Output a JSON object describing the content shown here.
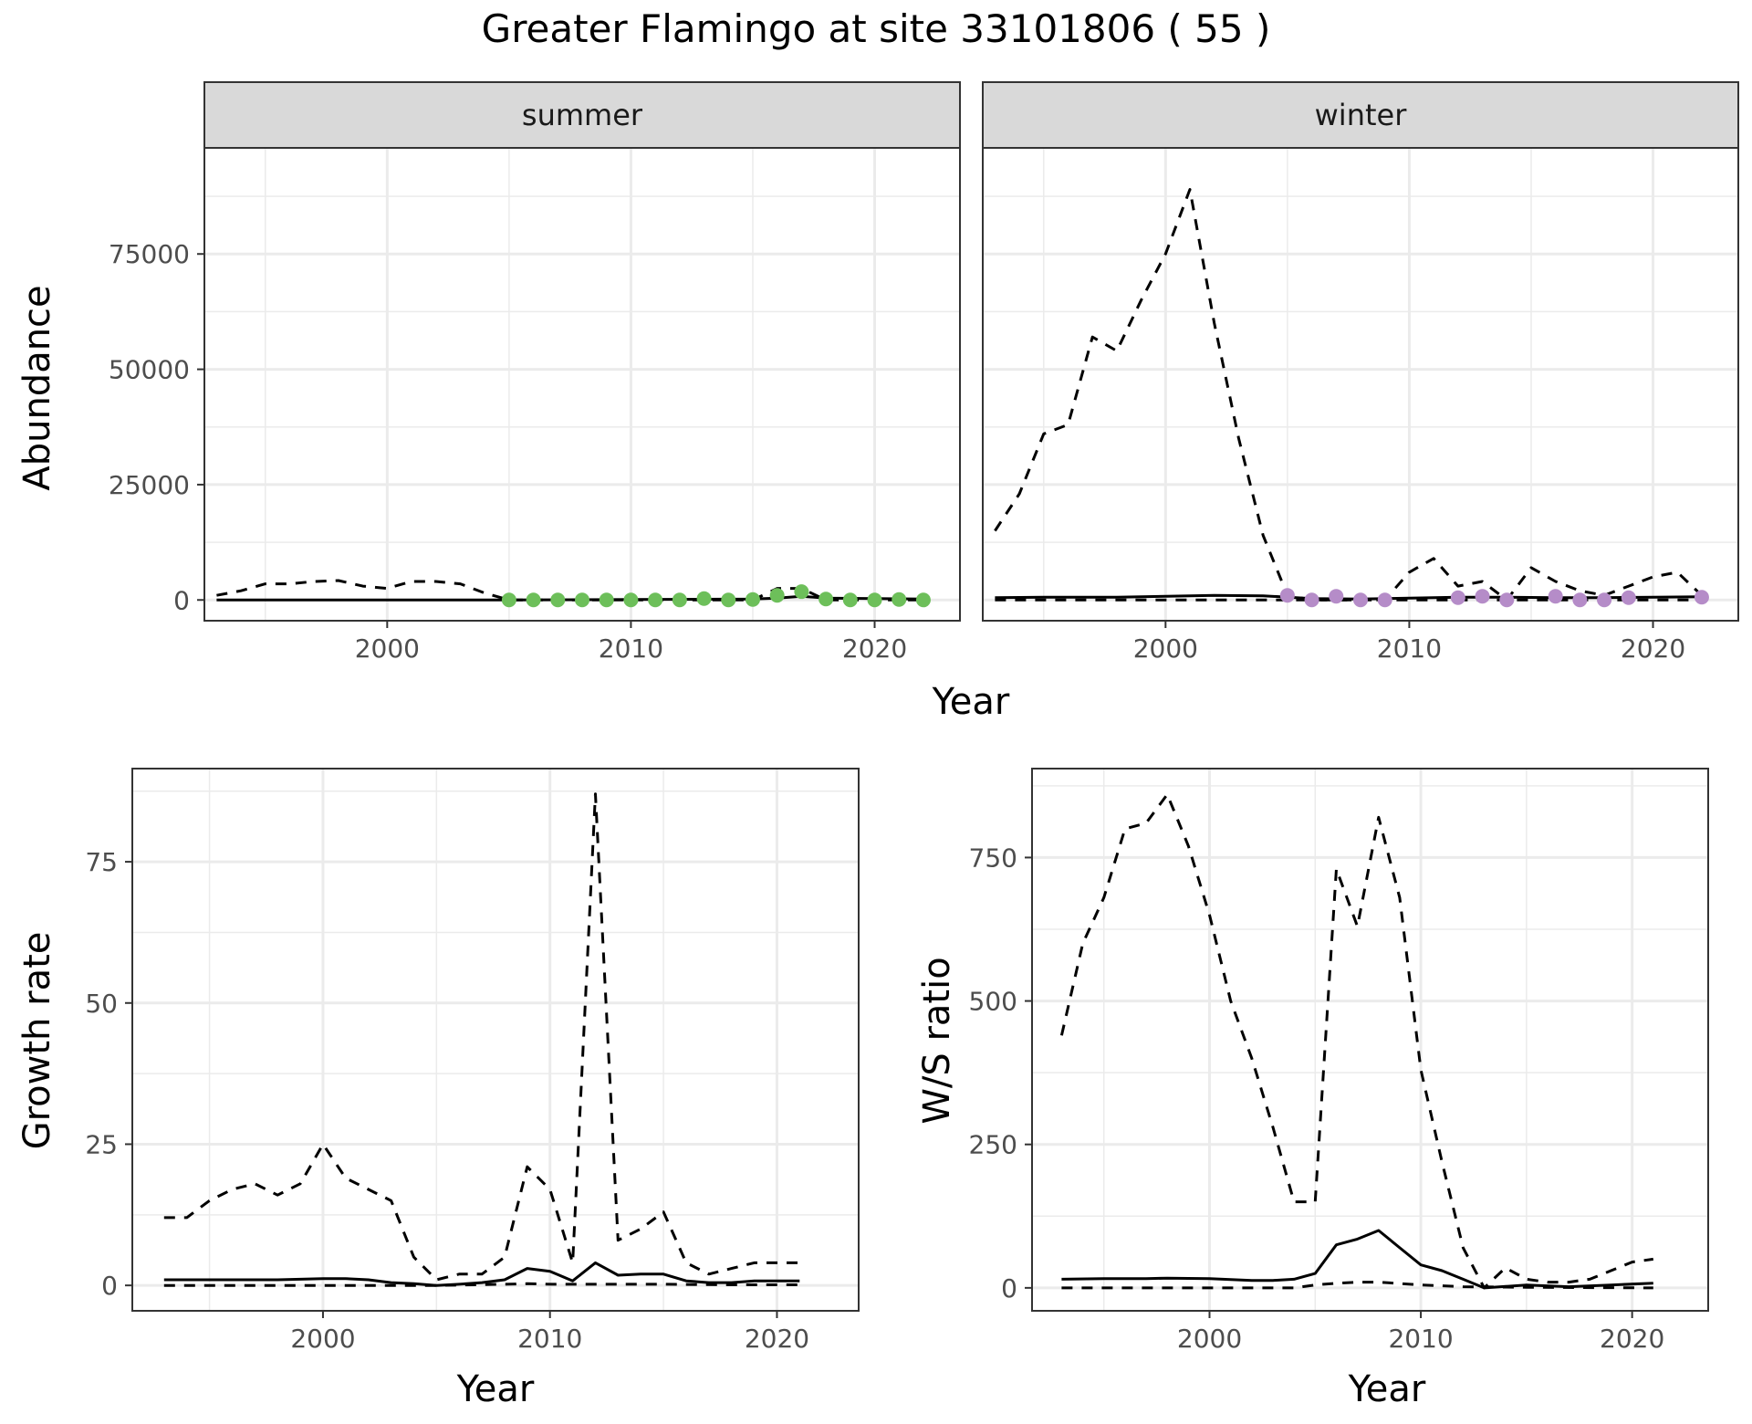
{
  "title": "Greater Flamingo at site 33101806 ( 55 )",
  "colors": {
    "summer_points": "#6dbf5a",
    "winter_points": "#b58cc8",
    "strip_fill": "#d9d9d9",
    "grid": "#ebebeb",
    "line": "#000000"
  },
  "chart_data": [
    {
      "type": "line",
      "panel": "summer",
      "strip_label": "summer",
      "xlabel": "Year",
      "ylabel": "Abundance",
      "xlim": [
        1992.5,
        2023.5
      ],
      "ylim": [
        -4500,
        98000
      ],
      "x_ticks": [
        2000,
        2010,
        2020
      ],
      "y_ticks": [
        0,
        25000,
        50000,
        75000
      ],
      "grid": true,
      "series": [
        {
          "style": "dashed",
          "x": [
            1993,
            1994,
            1995,
            1996,
            1997,
            1998,
            1999,
            2000,
            2001,
            2002,
            2003,
            2004,
            2005,
            2006,
            2007,
            2008,
            2009,
            2010,
            2011,
            2012,
            2013,
            2014,
            2015,
            2016,
            2017,
            2018,
            2019,
            2020,
            2021,
            2022
          ],
          "y": [
            1000,
            2000,
            3500,
            3500,
            4000,
            4200,
            3000,
            2500,
            4000,
            4000,
            3500,
            1500,
            0,
            0,
            0,
            0,
            0,
            0,
            0,
            0,
            0,
            0,
            0,
            2500,
            2500,
            0,
            0,
            0,
            0,
            0
          ]
        },
        {
          "style": "solid",
          "x": [
            1993,
            1995,
            2000,
            2003,
            2004,
            2005,
            2010,
            2015,
            2016,
            2017,
            2018,
            2020,
            2022
          ],
          "y": [
            0,
            0,
            0,
            0,
            0,
            0,
            100,
            200,
            400,
            800,
            400,
            300,
            200
          ]
        },
        {
          "style": "points",
          "x": [
            2005,
            2006,
            2007,
            2008,
            2009,
            2010,
            2011,
            2012,
            2013,
            2014,
            2015,
            2016,
            2017,
            2018,
            2019,
            2020,
            2021,
            2022
          ],
          "y": [
            0,
            0,
            0,
            0,
            0,
            0,
            0,
            0,
            300,
            0,
            100,
            1000,
            1800,
            200,
            0,
            0,
            100,
            0
          ]
        }
      ]
    },
    {
      "type": "line",
      "panel": "winter",
      "strip_label": "winter",
      "xlabel": "Year",
      "ylabel": "Abundance",
      "xlim": [
        1992.5,
        2023.5
      ],
      "ylim": [
        -4500,
        98000
      ],
      "x_ticks": [
        2000,
        2010,
        2020
      ],
      "y_ticks": [
        0,
        25000,
        50000,
        75000
      ],
      "grid": true,
      "series": [
        {
          "style": "dashed",
          "x": [
            1993,
            1994,
            1995,
            1996,
            1997,
            1998,
            1999,
            2000,
            2001,
            2002,
            2003,
            2004,
            2005,
            2006,
            2007,
            2008,
            2009,
            2010,
            2011,
            2012,
            2013,
            2014,
            2015,
            2016,
            2017,
            2018,
            2019,
            2020,
            2021,
            2022
          ],
          "y": [
            15000,
            23000,
            36000,
            38000,
            57000,
            54000,
            65000,
            75000,
            89000,
            60000,
            35000,
            14000,
            1000,
            0,
            0,
            0,
            0,
            6000,
            9000,
            3000,
            4000,
            0,
            7000,
            4000,
            2000,
            1000,
            3000,
            5000,
            6000,
            1000
          ]
        },
        {
          "style": "solid",
          "x": [
            1993,
            1995,
            1998,
            2000,
            2002,
            2004,
            2006,
            2008,
            2010,
            2012,
            2014,
            2016,
            2018,
            2020,
            2022
          ],
          "y": [
            500,
            600,
            600,
            800,
            1000,
            900,
            300,
            200,
            400,
            600,
            600,
            500,
            500,
            600,
            700
          ]
        },
        {
          "style": "dashed",
          "x": [
            1993,
            2000,
            2005,
            2010,
            2015,
            2022
          ],
          "y": [
            0,
            0,
            0,
            0,
            0,
            0
          ]
        },
        {
          "style": "points",
          "x": [
            2005,
            2006,
            2007,
            2008,
            2009,
            2012,
            2013,
            2014,
            2016,
            2017,
            2018,
            2019,
            2022
          ],
          "y": [
            1000,
            0,
            800,
            0,
            0,
            500,
            800,
            0,
            800,
            0,
            0,
            500,
            600
          ]
        }
      ]
    },
    {
      "type": "line",
      "panel": "growth",
      "xlabel": "Year",
      "ylabel": "Growth rate",
      "xlim": [
        1991.6,
        2023.6
      ],
      "ylim": [
        -4.5,
        91.5
      ],
      "x_ticks": [
        2000,
        2010,
        2020
      ],
      "y_ticks": [
        0,
        25,
        50,
        75
      ],
      "grid": true,
      "series": [
        {
          "style": "dashed",
          "x": [
            1993,
            1994,
            1995,
            1996,
            1997,
            1998,
            1999,
            2000,
            2001,
            2002,
            2003,
            2004,
            2005,
            2006,
            2007,
            2008,
            2009,
            2010,
            2011,
            2012,
            2013,
            2014,
            2015,
            2016,
            2017,
            2018,
            2019,
            2020,
            2021
          ],
          "y": [
            12,
            12,
            15,
            17,
            18,
            16,
            18,
            25,
            19,
            17,
            15,
            5,
            1,
            2,
            2,
            5,
            21,
            17,
            4,
            87,
            8,
            10,
            13,
            4,
            2,
            3,
            4,
            4,
            4
          ]
        },
        {
          "style": "solid",
          "x": [
            1993,
            1995,
            1998,
            2000,
            2001,
            2002,
            2003,
            2004,
            2005,
            2006,
            2007,
            2008,
            2009,
            2010,
            2011,
            2012,
            2013,
            2014,
            2015,
            2016,
            2017,
            2018,
            2019,
            2020,
            2021
          ],
          "y": [
            1,
            1,
            1,
            1.2,
            1.2,
            1,
            0.5,
            0.3,
            0,
            0.2,
            0.5,
            1,
            3,
            2.5,
            0.8,
            4,
            1.8,
            2,
            2,
            0.8,
            0.5,
            0.5,
            0.8,
            0.8,
            0.8
          ]
        },
        {
          "style": "dashed",
          "x": [
            1993,
            2000,
            2005,
            2008,
            2009,
            2010,
            2012,
            2015,
            2018,
            2021
          ],
          "y": [
            0,
            0,
            0,
            0.2,
            0.3,
            0.2,
            0.2,
            0.2,
            0.1,
            0.1
          ]
        }
      ]
    },
    {
      "type": "line",
      "panel": "ws_ratio",
      "xlabel": "Year",
      "ylabel": "W/S ratio",
      "xlim": [
        1991.6,
        2023.6
      ],
      "ylim": [
        -40,
        905
      ],
      "x_ticks": [
        2000,
        2010,
        2020
      ],
      "y_ticks": [
        0,
        250,
        500,
        750
      ],
      "grid": true,
      "series": [
        {
          "style": "dashed",
          "x": [
            1993,
            1994,
            1995,
            1996,
            1997,
            1998,
            1999,
            2000,
            2001,
            2002,
            2003,
            2004,
            2005,
            2006,
            2007,
            2008,
            2009,
            2010,
            2011,
            2012,
            2013,
            2014,
            2015,
            2016,
            2017,
            2018,
            2019,
            2020,
            2021
          ],
          "y": [
            440,
            600,
            680,
            800,
            810,
            860,
            770,
            650,
            500,
            400,
            280,
            150,
            150,
            730,
            630,
            820,
            680,
            380,
            220,
            70,
            0,
            35,
            15,
            10,
            10,
            15,
            30,
            45,
            50
          ]
        },
        {
          "style": "solid",
          "x": [
            1993,
            1995,
            1997,
            1998,
            2000,
            2002,
            2003,
            2004,
            2005,
            2006,
            2007,
            2008,
            2009,
            2010,
            2011,
            2012,
            2013,
            2015,
            2017,
            2019,
            2021
          ],
          "y": [
            15,
            16,
            16,
            17,
            16,
            13,
            13,
            15,
            25,
            75,
            85,
            100,
            70,
            40,
            30,
            15,
            0,
            5,
            2,
            5,
            8
          ]
        },
        {
          "style": "dashed",
          "x": [
            1993,
            2000,
            2004,
            2005,
            2006,
            2007,
            2008,
            2010,
            2012,
            2015,
            2021
          ],
          "y": [
            0,
            0,
            0,
            5,
            8,
            10,
            10,
            5,
            2,
            1,
            0
          ]
        }
      ]
    }
  ]
}
